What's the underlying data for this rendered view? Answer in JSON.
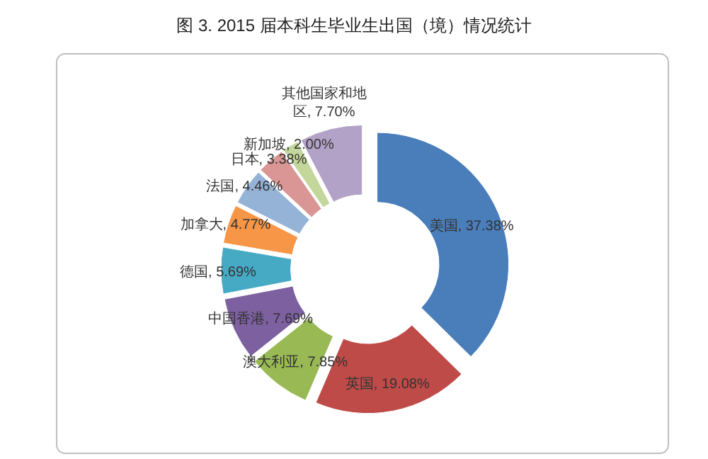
{
  "chart_data": {
    "type": "donut",
    "title": "图 3. 2015 届本科生毕业生出国（境）情况统计",
    "categories": [
      "美国",
      "英国",
      "澳大利亚",
      "中国香港",
      "德国",
      "加拿大",
      "法国",
      "日本",
      "新加坡",
      "其他国家和地区"
    ],
    "values": [
      37.38,
      19.08,
      7.85,
      7.69,
      5.69,
      4.77,
      4.46,
      3.38,
      2.0,
      7.7
    ],
    "value_labels": [
      "37.38%",
      "19.08%",
      "7.85%",
      "7.69%",
      "5.69%",
      "4.77%",
      "4.46%",
      "3.38%",
      "2.00%",
      "7.70%"
    ],
    "colors": [
      "#4a7ebb",
      "#be4b48",
      "#98b954",
      "#7d60a0",
      "#46aac5",
      "#f79646",
      "#95b3d7",
      "#d99694",
      "#c3d69b",
      "#b3a2c7"
    ]
  }
}
